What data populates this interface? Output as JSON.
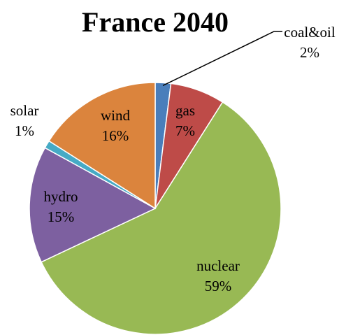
{
  "chart_data": {
    "type": "pie",
    "title": "France 2040",
    "categories": [
      "coal&oil",
      "gas",
      "nuclear",
      "hydro",
      "solar",
      "wind"
    ],
    "values": [
      2,
      7,
      59,
      15,
      1,
      16
    ],
    "value_labels": [
      "2%",
      "7%",
      "59%",
      "15%",
      "1%",
      "16%"
    ],
    "colors": [
      "#4a7ebb",
      "#be4b48",
      "#98b954",
      "#7d60a0",
      "#46aac5",
      "#db843d"
    ]
  }
}
